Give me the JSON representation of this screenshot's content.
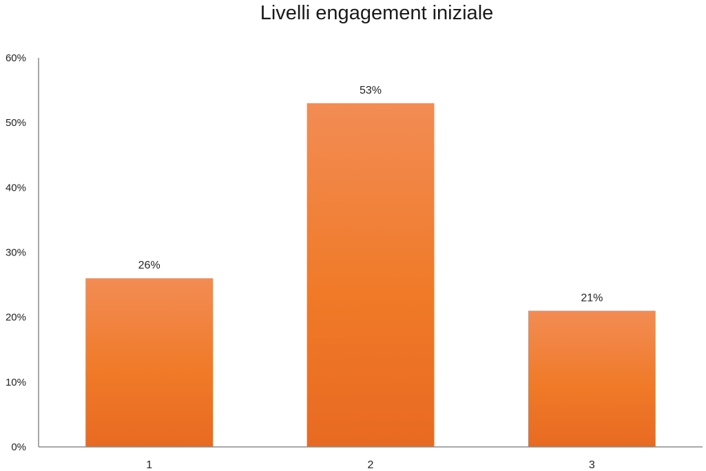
{
  "chart_data": {
    "type": "bar",
    "title": "Livelli engagement iniziale",
    "categories": [
      "1",
      "2",
      "3"
    ],
    "values": [
      26,
      53,
      21
    ],
    "data_labels": [
      "26%",
      "53%",
      "21%"
    ],
    "ylim": [
      0,
      60
    ],
    "y_ticks": [
      "0%",
      "10%",
      "20%",
      "30%",
      "40%",
      "50%",
      "60%"
    ],
    "grid": false,
    "legend": "none",
    "colors": {
      "bar_top": "#F28C54",
      "bar_mid": "#F07A28",
      "bar_bottom": "#E86A22",
      "axis": "#8C8C8C"
    }
  }
}
